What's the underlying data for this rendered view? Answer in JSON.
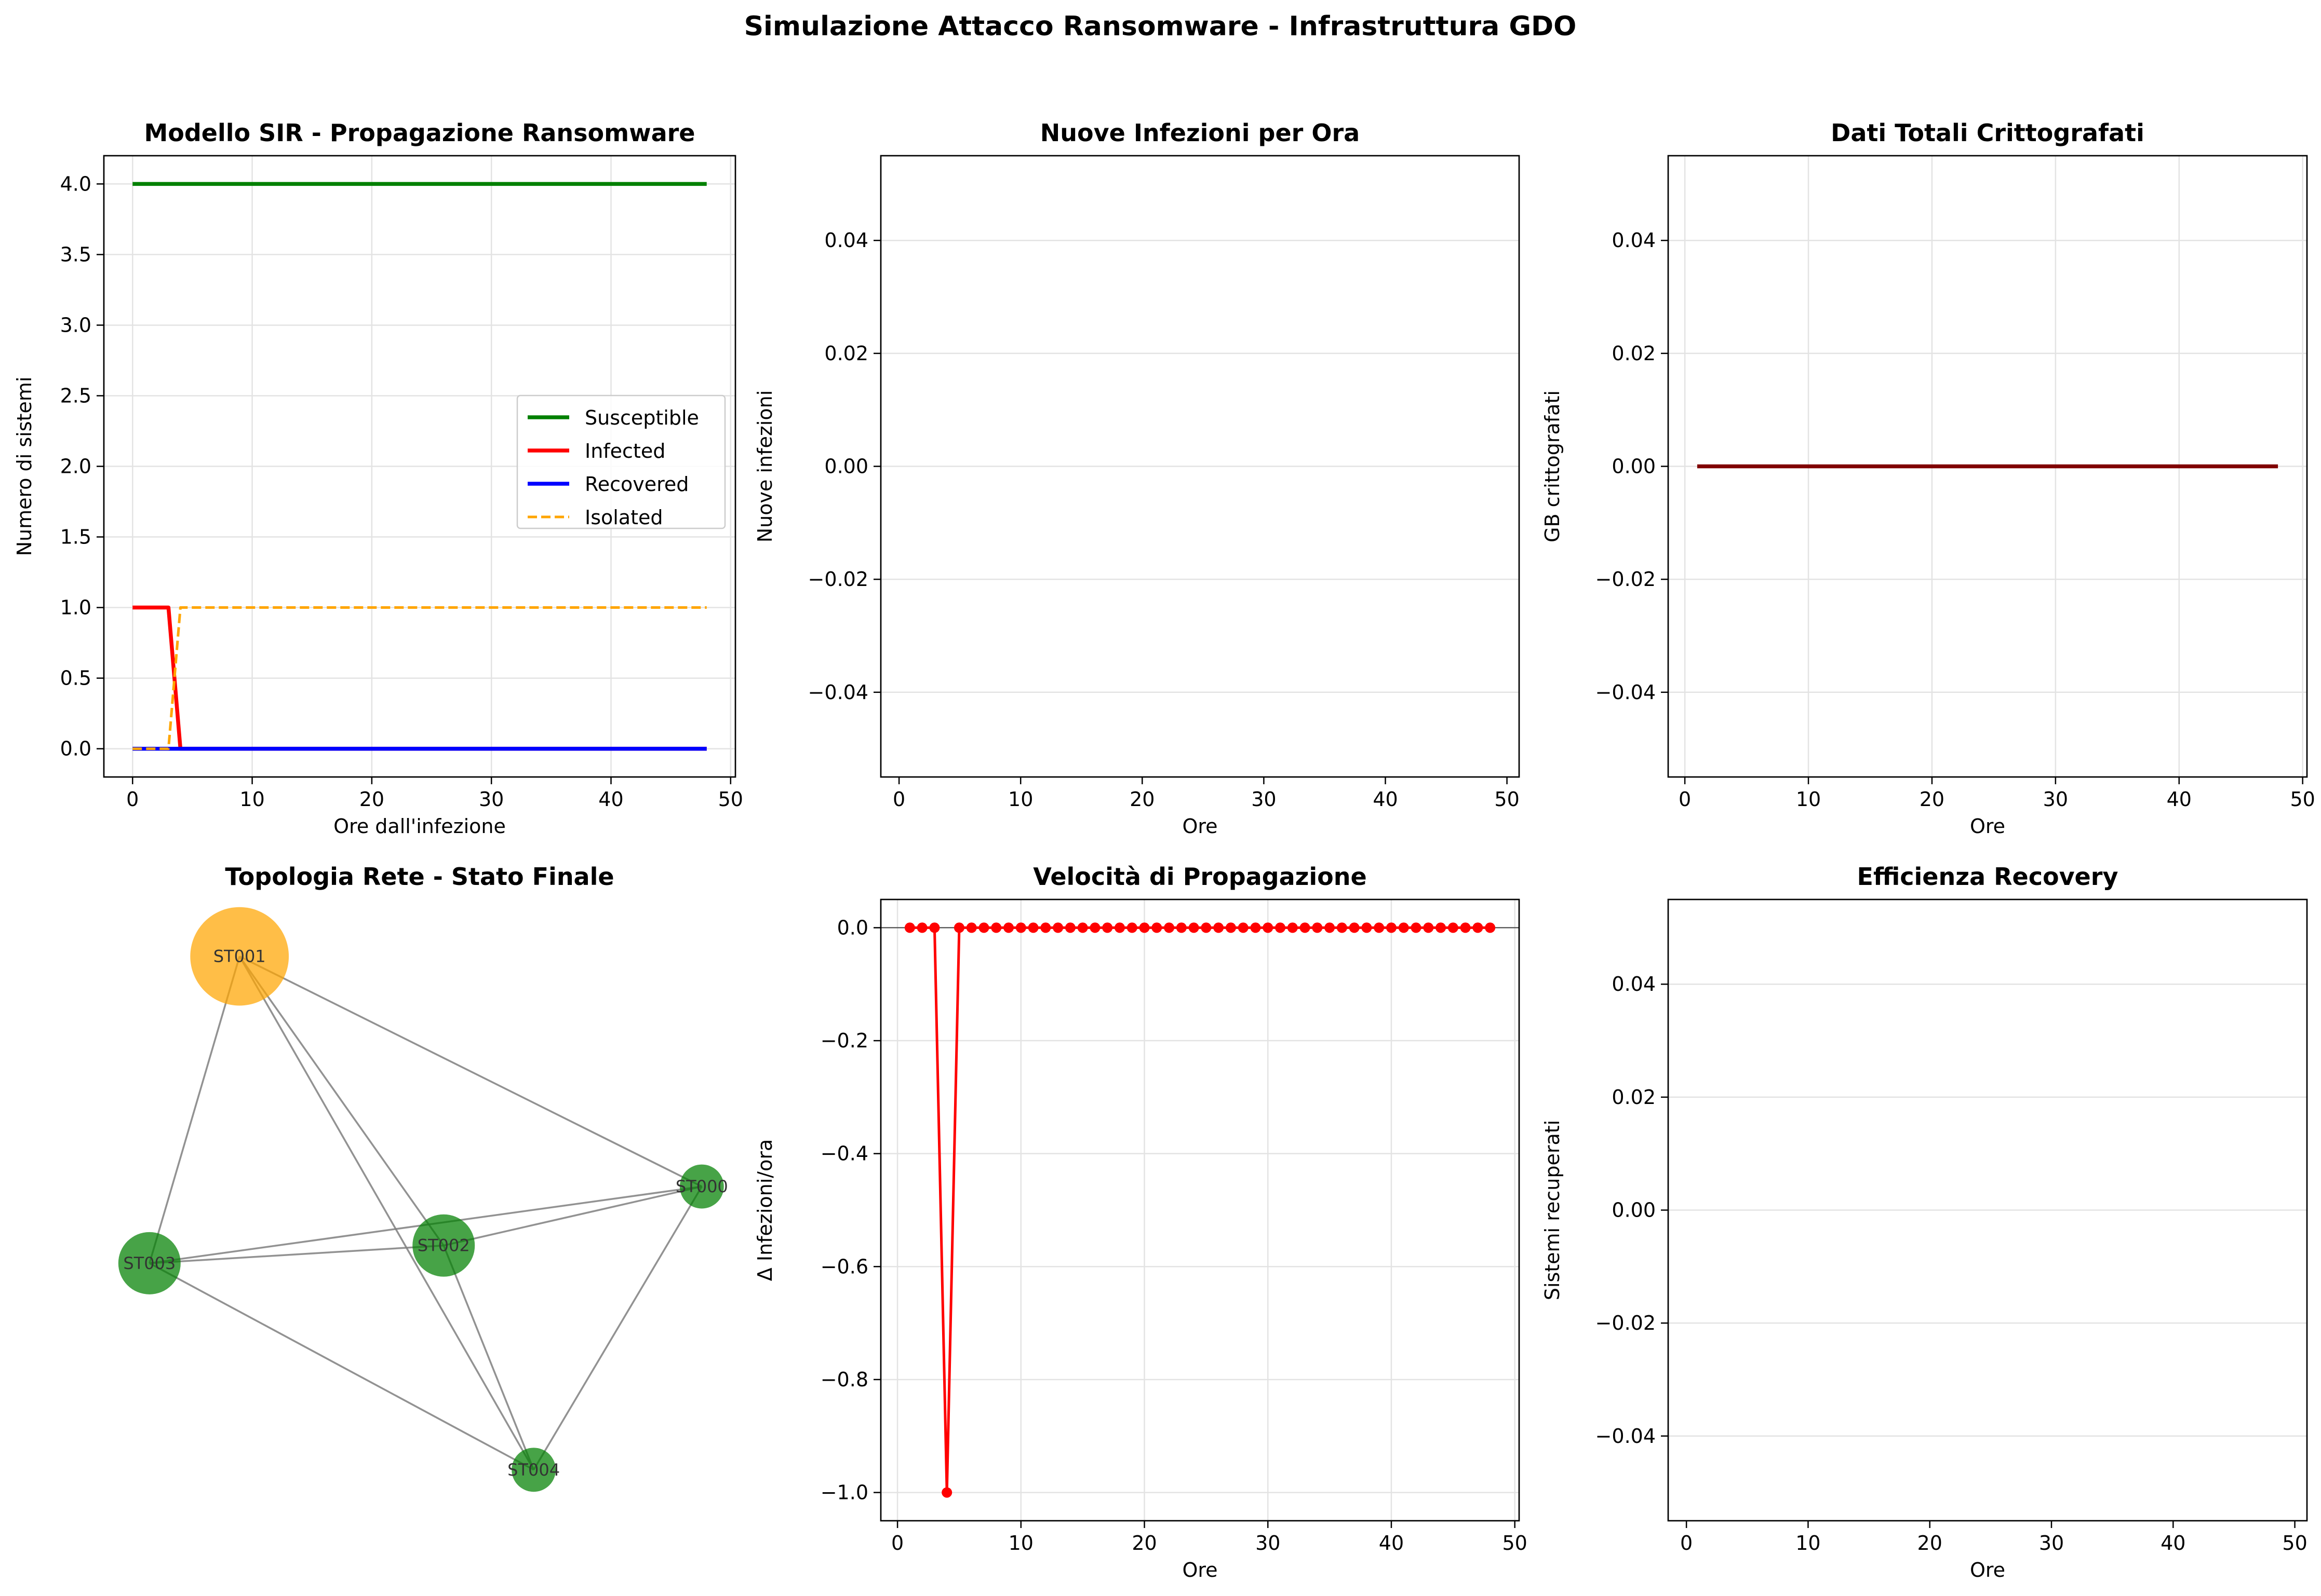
{
  "figure": {
    "suptitle": "Simulazione Attacco Ransomware - Infrastruttura GDO"
  },
  "colors": {
    "susceptible": "#008000",
    "infected": "#ff0000",
    "recovered": "#0000ff",
    "isolated": "#ffa500",
    "encrypted": "#800000",
    "node_healthy": "#008000",
    "node_isolated": "#ffa500",
    "edge": "#808080"
  },
  "chart_data": [
    {
      "id": "sir",
      "type": "line",
      "title": "Modello SIR - Propagazione Ransomware",
      "xlabel": "Ore dall'infezione",
      "ylabel": "Numero di sistemi",
      "xlim": [
        -2.4,
        50.4
      ],
      "ylim": [
        -0.2,
        4.2
      ],
      "xticks": [
        0,
        10,
        20,
        30,
        40,
        50
      ],
      "xtick_labels": [
        "0",
        "10",
        "20",
        "30",
        "40",
        "50"
      ],
      "yticks": [
        0,
        0.5,
        1,
        1.5,
        2,
        2.5,
        3,
        3.5,
        4
      ],
      "ytick_labels": [
        "0.0",
        "0.5",
        "1.0",
        "1.5",
        "2.0",
        "2.5",
        "3.0",
        "3.5",
        "4.0"
      ],
      "grid": true,
      "legend": "center-right",
      "series": [
        {
          "name": "Susceptible",
          "color": "#008000",
          "dash": "solid",
          "x": [
            0,
            48
          ],
          "y": [
            4,
            4
          ]
        },
        {
          "name": "Infected",
          "color": "#ff0000",
          "dash": "solid",
          "x": [
            0,
            1,
            2,
            3,
            4,
            48
          ],
          "y": [
            1,
            1,
            1,
            1,
            0,
            0
          ]
        },
        {
          "name": "Recovered",
          "color": "#0000ff",
          "dash": "solid",
          "x": [
            0,
            48
          ],
          "y": [
            0,
            0
          ]
        },
        {
          "name": "Isolated",
          "color": "#ffa500",
          "dash": "dashed",
          "x": [
            0,
            1,
            2,
            3,
            4,
            48
          ],
          "y": [
            0,
            0,
            0,
            0,
            1,
            1
          ]
        }
      ]
    },
    {
      "id": "new_infections",
      "type": "bar",
      "title": "Nuove Infezioni per Ora",
      "xlabel": "Ore",
      "ylabel": "Nuove infezioni",
      "xlim": [
        -1.5,
        51
      ],
      "ylim": [
        -0.055,
        0.055
      ],
      "xticks": [
        0,
        10,
        20,
        30,
        40,
        50
      ],
      "xtick_labels": [
        "0",
        "10",
        "20",
        "30",
        "40",
        "50"
      ],
      "yticks": [
        -0.04,
        -0.02,
        0,
        0.02,
        0.04
      ],
      "ytick_labels": [
        "−0.04",
        "−0.02",
        "0.00",
        "0.02",
        "0.04"
      ],
      "grid": "y",
      "series": []
    },
    {
      "id": "encrypted",
      "type": "line",
      "title": "Dati Totali Crittografati",
      "xlabel": "Ore",
      "ylabel": "GB crittografati",
      "xlim": [
        -1.35,
        50.35
      ],
      "ylim": [
        -0.055,
        0.055
      ],
      "xticks": [
        0,
        10,
        20,
        30,
        40,
        50
      ],
      "xtick_labels": [
        "0",
        "10",
        "20",
        "30",
        "40",
        "50"
      ],
      "yticks": [
        -0.04,
        -0.02,
        0,
        0.02,
        0.04
      ],
      "ytick_labels": [
        "−0.04",
        "−0.02",
        "0.00",
        "0.02",
        "0.04"
      ],
      "grid": true,
      "series": [
        {
          "name": "",
          "color": "#800000",
          "dash": "solid",
          "x": [
            1,
            48
          ],
          "y": [
            0,
            0
          ]
        }
      ]
    },
    {
      "id": "topology",
      "type": "network",
      "title": "Topologia Rete - Stato Finale",
      "nodes": [
        {
          "id": "ST001",
          "label": "ST001",
          "x": 0.2,
          "y": 0.93,
          "size": 2.5,
          "color": "#ffa500"
        },
        {
          "id": "ST000",
          "label": "ST000",
          "x": 0.97,
          "y": 0.54,
          "size": 0.5,
          "color": "#008000"
        },
        {
          "id": "ST003",
          "label": "ST003",
          "x": 0.05,
          "y": 0.41,
          "size": 1.0,
          "color": "#008000"
        },
        {
          "id": "ST002",
          "label": "ST002",
          "x": 0.54,
          "y": 0.44,
          "size": 1.0,
          "color": "#008000"
        },
        {
          "id": "ST004",
          "label": "ST004",
          "x": 0.69,
          "y": 0.06,
          "size": 0.5,
          "color": "#008000"
        }
      ],
      "edges": [
        [
          "ST001",
          "ST000"
        ],
        [
          "ST001",
          "ST003"
        ],
        [
          "ST001",
          "ST002"
        ],
        [
          "ST001",
          "ST004"
        ],
        [
          "ST003",
          "ST000"
        ],
        [
          "ST003",
          "ST002"
        ],
        [
          "ST003",
          "ST004"
        ],
        [
          "ST002",
          "ST000"
        ],
        [
          "ST002",
          "ST004"
        ],
        [
          "ST000",
          "ST004"
        ]
      ]
    },
    {
      "id": "speed",
      "type": "line",
      "title": "Velocità di Propagazione",
      "xlabel": "Ore",
      "ylabel": "Δ Infezioni/ora",
      "xlim": [
        -1.35,
        50.35
      ],
      "ylim": [
        -1.05,
        0.05
      ],
      "xticks": [
        0,
        10,
        20,
        30,
        40,
        50
      ],
      "xtick_labels": [
        "0",
        "10",
        "20",
        "30",
        "40",
        "50"
      ],
      "yticks": [
        -1,
        -0.8,
        -0.6,
        -0.4,
        -0.2,
        0
      ],
      "ytick_labels": [
        "−1.0",
        "−0.8",
        "−0.6",
        "−0.4",
        "−0.2",
        "0.0"
      ],
      "grid": true,
      "zero_line": true,
      "series": [
        {
          "name": "",
          "color": "#ff0000",
          "marker": true,
          "x": [
            1,
            2,
            3,
            4,
            5,
            6,
            7,
            8,
            9,
            10,
            11,
            12,
            13,
            14,
            15,
            16,
            17,
            18,
            19,
            20,
            21,
            22,
            23,
            24,
            25,
            26,
            27,
            28,
            29,
            30,
            31,
            32,
            33,
            34,
            35,
            36,
            37,
            38,
            39,
            40,
            41,
            42,
            43,
            44,
            45,
            46,
            47,
            48
          ],
          "y": [
            0,
            0,
            0,
            -1,
            0,
            0,
            0,
            0,
            0,
            0,
            0,
            0,
            0,
            0,
            0,
            0,
            0,
            0,
            0,
            0,
            0,
            0,
            0,
            0,
            0,
            0,
            0,
            0,
            0,
            0,
            0,
            0,
            0,
            0,
            0,
            0,
            0,
            0,
            0,
            0,
            0,
            0,
            0,
            0,
            0,
            0,
            0,
            0
          ]
        }
      ]
    },
    {
      "id": "recovery",
      "type": "bar",
      "title": "Efficienza Recovery",
      "xlabel": "Ore",
      "ylabel": "Sistemi recuperati",
      "xlim": [
        -1.5,
        51
      ],
      "ylim": [
        -0.055,
        0.055
      ],
      "xticks": [
        0,
        10,
        20,
        30,
        40,
        50
      ],
      "xtick_labels": [
        "0",
        "10",
        "20",
        "30",
        "40",
        "50"
      ],
      "yticks": [
        -0.04,
        -0.02,
        0,
        0.02,
        0.04
      ],
      "ytick_labels": [
        "−0.04",
        "−0.02",
        "0.00",
        "0.02",
        "0.04"
      ],
      "grid": "y",
      "series": []
    }
  ]
}
